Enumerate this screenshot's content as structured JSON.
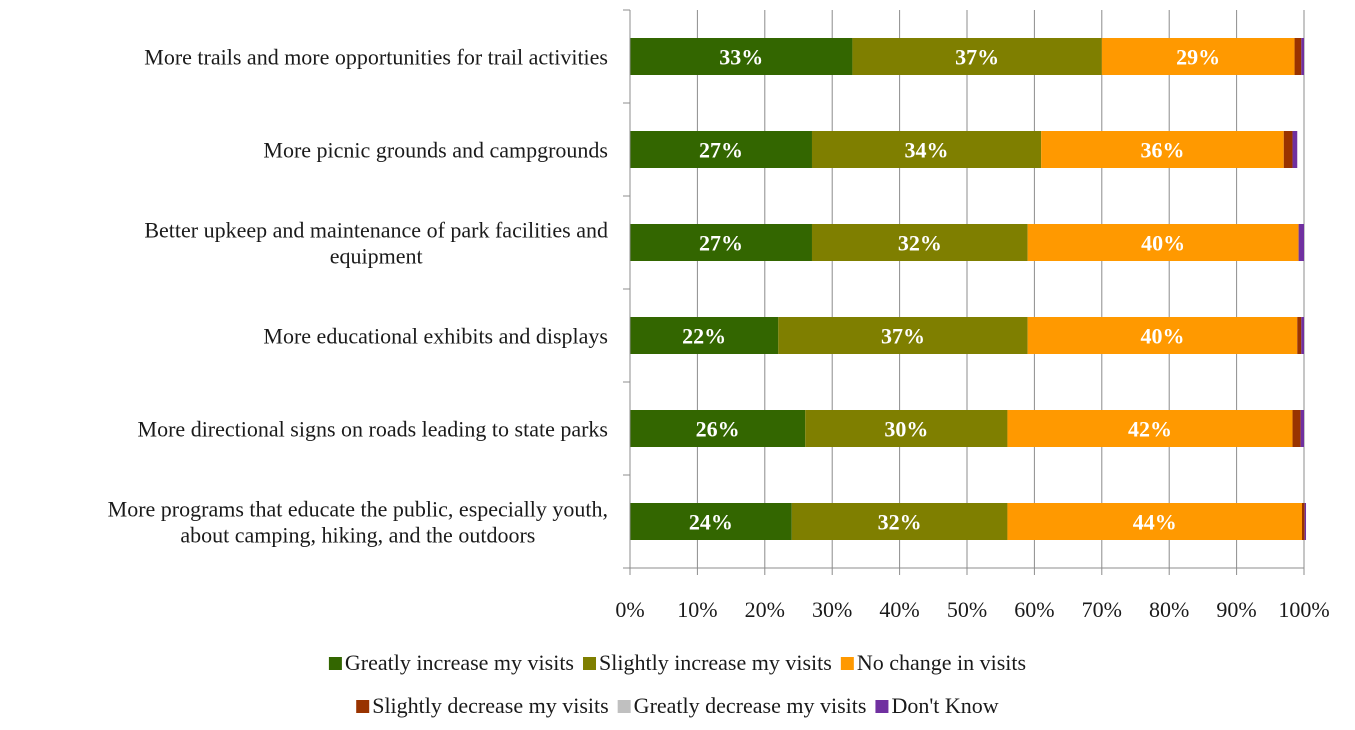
{
  "chart_data": {
    "type": "bar",
    "orientation": "horizontal",
    "stacked": true,
    "percent_stacked": true,
    "categories": [
      [
        "More trails and more opportunities for trail activities"
      ],
      [
        "More picnic grounds and campgrounds"
      ],
      [
        "Better upkeep and maintenance of park facilities and",
        "equipment"
      ],
      [
        "More educational exhibits and displays"
      ],
      [
        "More directional signs on roads leading to state parks"
      ],
      [
        "More programs that educate the public, especially youth,",
        "about camping, hiking, and the outdoors"
      ]
    ],
    "series": [
      {
        "name": "Greatly increase my visits",
        "color": "#336600",
        "values": [
          33,
          27,
          27,
          22,
          26,
          24
        ],
        "labels": [
          "33%",
          "27%",
          "27%",
          "22%",
          "26%",
          "24%"
        ]
      },
      {
        "name": "Slightly increase my visits",
        "color": "#7f7f00",
        "values": [
          37,
          34,
          32,
          37,
          30,
          32
        ],
        "labels": [
          "37%",
          "34%",
          "32%",
          "37%",
          "30%",
          "32%"
        ]
      },
      {
        "name": "No change in visits",
        "color": "#ff9900",
        "values": [
          28.6,
          36,
          40.2,
          40,
          42.3,
          43.7
        ],
        "labels": [
          "29%",
          "36%",
          "40%",
          "40%",
          "42%",
          "44%"
        ]
      },
      {
        "name": "Slightly decrease my visits",
        "color": "#993300",
        "values": [
          1.0,
          1.3,
          0,
          0.6,
          1.2,
          0.4
        ],
        "labels": [
          "",
          "",
          "",
          "",
          "",
          ""
        ]
      },
      {
        "name": "Greatly decrease my visits",
        "color": "#c0c0c0",
        "values": [
          0,
          0,
          0,
          0,
          0,
          0
        ],
        "labels": [
          "",
          "",
          "",
          "",
          "",
          ""
        ]
      },
      {
        "name": "Don't Know",
        "color": "#7030a0",
        "values": [
          0.4,
          0.7,
          0.8,
          0.4,
          0.5,
          0.2
        ],
        "labels": [
          "",
          "",
          "",
          "",
          "",
          ""
        ]
      }
    ],
    "x_ticks": [
      "0%",
      "10%",
      "20%",
      "30%",
      "40%",
      "50%",
      "60%",
      "70%",
      "80%",
      "90%",
      "100%"
    ],
    "xlim": [
      0,
      100
    ],
    "grid": "vertical",
    "legend_position": "bottom",
    "legend_rows": [
      [
        0,
        1,
        2
      ],
      [
        3,
        4,
        5
      ]
    ]
  }
}
